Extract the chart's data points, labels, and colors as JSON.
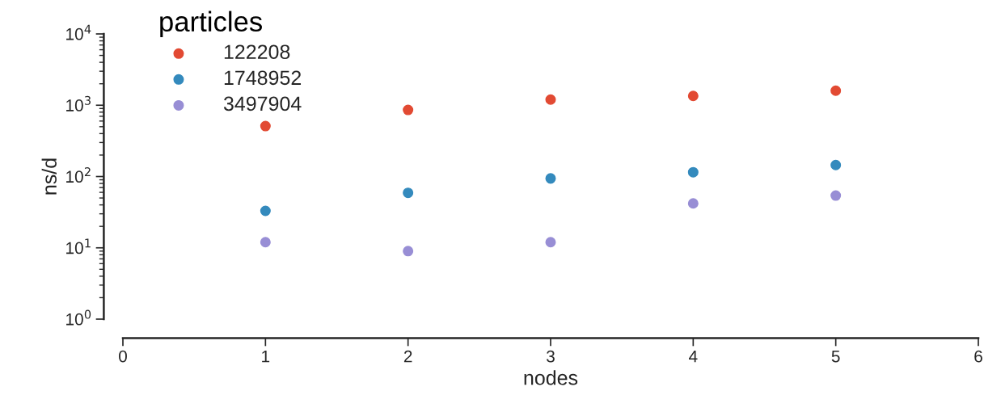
{
  "chart_data": {
    "type": "scatter",
    "xlabel": "nodes",
    "ylabel": "ns/d",
    "legend_title": "particles",
    "legend": "top left",
    "log": "y",
    "marker": "circle",
    "grid": false,
    "x": [
      1,
      2,
      3,
      4,
      5
    ],
    "xlim": [
      0,
      6
    ],
    "xticks": [
      0,
      1,
      2,
      3,
      4,
      5,
      6
    ],
    "ylim": [
      1,
      10000
    ],
    "yticks": [
      {
        "value": 1,
        "label": "10$^{0}$"
      },
      {
        "value": 10,
        "label": "10$^{1}$"
      },
      {
        "value": 100,
        "label": "10$^{2}$"
      },
      {
        "value": 1000,
        "label": "10$^{3}$"
      },
      {
        "value": 10000,
        "label": "10$^{4}$"
      }
    ],
    "series": [
      {
        "name": "122208",
        "color": "#e24a33",
        "values": [
          510,
          860,
          1200,
          1350,
          1600
        ]
      },
      {
        "name": "1748952",
        "color": "#348abd",
        "values": [
          33,
          59,
          94,
          115,
          145
        ]
      },
      {
        "name": "3497904",
        "color": "#988ed5",
        "values": [
          12,
          9,
          12,
          42,
          54
        ]
      }
    ]
  }
}
